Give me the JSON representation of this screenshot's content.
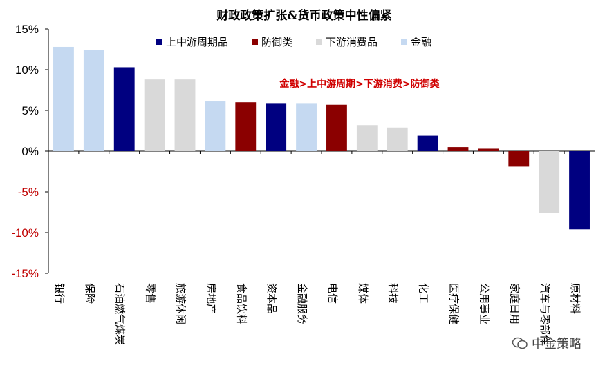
{
  "chart_data": {
    "type": "bar",
    "title": "财政政策扩张&货币政策中性偏紧",
    "annotation": "金融>上中游周期>下游消费>防御类",
    "ylim": [
      -15,
      15
    ],
    "yticks": [
      "15%",
      "10%",
      "5%",
      "0%",
      "-5%",
      "-10%",
      "-15%"
    ],
    "ytick_values": [
      15,
      10,
      5,
      0,
      -5,
      -10,
      -15
    ],
    "legend": [
      {
        "name": "上中游周期品",
        "color": "#000080"
      },
      {
        "name": "防御类",
        "color": "#8B0000"
      },
      {
        "name": "下游消费品",
        "color": "#D9D9D9"
      },
      {
        "name": "金融",
        "color": "#C5D9F1"
      }
    ],
    "categories": [
      "银行",
      "保险",
      "石油燃气煤炭",
      "零售",
      "旅游休闲",
      "房地产",
      "食品饮料",
      "资本品",
      "金融服务",
      "电信",
      "媒体",
      "科技",
      "化工",
      "医疗保健",
      "公用事业",
      "家庭日用",
      "汽车与零部件",
      "原材料"
    ],
    "groups": [
      "金融",
      "金融",
      "上中游周期品",
      "下游消费品",
      "下游消费品",
      "金融",
      "防御类",
      "上中游周期品",
      "金融",
      "防御类",
      "下游消费品",
      "下游消费品",
      "上中游周期品",
      "防御类",
      "防御类",
      "防御类",
      "下游消费品",
      "上中游周期品"
    ],
    "values": [
      12.8,
      12.4,
      10.3,
      8.8,
      8.8,
      6.1,
      6.0,
      5.9,
      5.9,
      5.7,
      3.2,
      2.9,
      1.9,
      0.5,
      0.3,
      -1.9,
      -7.6,
      -9.6
    ]
  },
  "watermark": {
    "text": "中金策略"
  }
}
